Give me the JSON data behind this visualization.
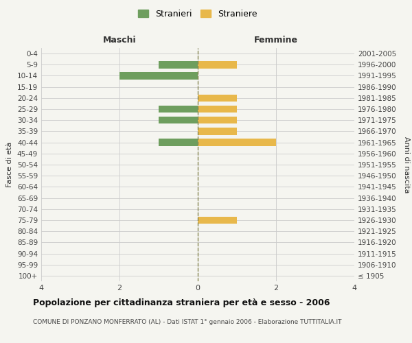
{
  "age_groups": [
    "100+",
    "95-99",
    "90-94",
    "85-89",
    "80-84",
    "75-79",
    "70-74",
    "65-69",
    "60-64",
    "55-59",
    "50-54",
    "45-49",
    "40-44",
    "35-39",
    "30-34",
    "25-29",
    "20-24",
    "15-19",
    "10-14",
    "5-9",
    "0-4"
  ],
  "birth_years": [
    "≤ 1905",
    "1906-1910",
    "1911-1915",
    "1916-1920",
    "1921-1925",
    "1926-1930",
    "1931-1935",
    "1936-1940",
    "1941-1945",
    "1946-1950",
    "1951-1955",
    "1956-1960",
    "1961-1965",
    "1966-1970",
    "1971-1975",
    "1976-1980",
    "1981-1985",
    "1986-1990",
    "1991-1995",
    "1996-2000",
    "2001-2005"
  ],
  "maschi": [
    0,
    0,
    0,
    0,
    0,
    0,
    0,
    0,
    0,
    0,
    0,
    0,
    1,
    0,
    1,
    1,
    0,
    0,
    2,
    1,
    0
  ],
  "femmine": [
    0,
    0,
    0,
    0,
    0,
    1,
    0,
    0,
    0,
    0,
    0,
    0,
    2,
    1,
    1,
    1,
    1,
    0,
    0,
    1,
    0
  ],
  "maschi_color": "#6e9e5e",
  "femmine_color": "#e8b84b",
  "bg_color": "#f5f5f0",
  "grid_color": "#cccccc",
  "center_line_color": "#888855",
  "title": "Popolazione per cittadinanza straniera per età e sesso - 2006",
  "subtitle": "COMUNE DI PONZANO MONFERRATO (AL) - Dati ISTAT 1° gennaio 2006 - Elaborazione TUTTITALIA.IT",
  "header_left": "Maschi",
  "header_right": "Femmine",
  "ylabel_left": "Fasce di età",
  "ylabel_right": "Anni di nascita",
  "legend_maschi": "Stranieri",
  "legend_femmine": "Straniere",
  "xlim": 4
}
